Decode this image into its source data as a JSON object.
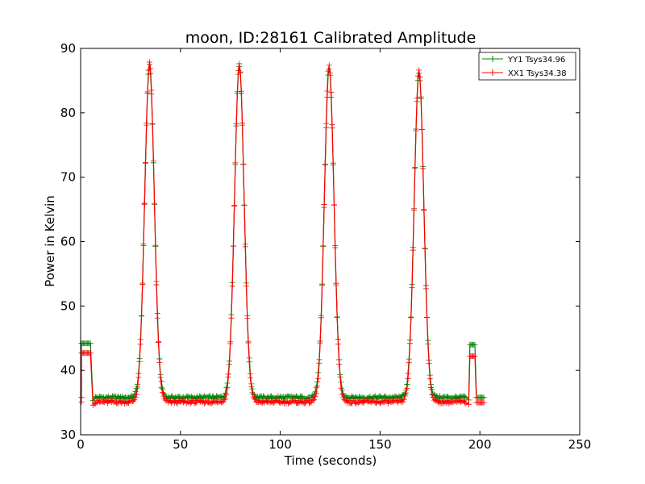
{
  "chart_data": {
    "type": "line",
    "title": "moon, ID:28161 Calibrated Amplitude",
    "xlabel": "Time (seconds)",
    "ylabel": "Power in Kelvin",
    "xlim": [
      0,
      250
    ],
    "ylim": [
      30,
      90
    ],
    "xticks": [
      0,
      50,
      100,
      150,
      200,
      250
    ],
    "yticks": [
      30,
      40,
      50,
      60,
      70,
      80,
      90
    ],
    "grid": false,
    "legend_position": "top-right",
    "marker": "+",
    "peaks": [
      {
        "center": 34.5,
        "width": 2.4
      },
      {
        "center": 79.5,
        "width": 2.4
      },
      {
        "center": 124.5,
        "width": 2.4
      },
      {
        "center": 169.5,
        "width": 2.4
      }
    ],
    "series": [
      {
        "name": "YY1 Tsys34.96",
        "color": "#008000",
        "baseline": 35.8,
        "peak_values": [
          87.3,
          87.3,
          86.8,
          86.2
        ],
        "start_block": {
          "x": [
            0.4,
            5.0
          ],
          "value": 44.2
        },
        "end_block": {
          "x": [
            195.0,
            197.5
          ],
          "value": 44.0
        },
        "tail_block": {
          "x": [
            199.0,
            202.0
          ],
          "value": 35.8
        },
        "x_end": 202
      },
      {
        "name": "XX1 Tsys34.38",
        "color": "#ff0000",
        "baseline": 35.1,
        "peak_values": [
          87.8,
          87.6,
          87.5,
          86.7
        ],
        "start_block": {
          "x": [
            0.4,
            5.0
          ],
          "value": 42.7
        },
        "end_block": {
          "x": [
            195.0,
            197.5
          ],
          "value": 42.2
        },
        "tail_block": {
          "x": [
            199.0,
            202.0
          ],
          "value": 35.0
        },
        "x_end": 202
      }
    ]
  }
}
